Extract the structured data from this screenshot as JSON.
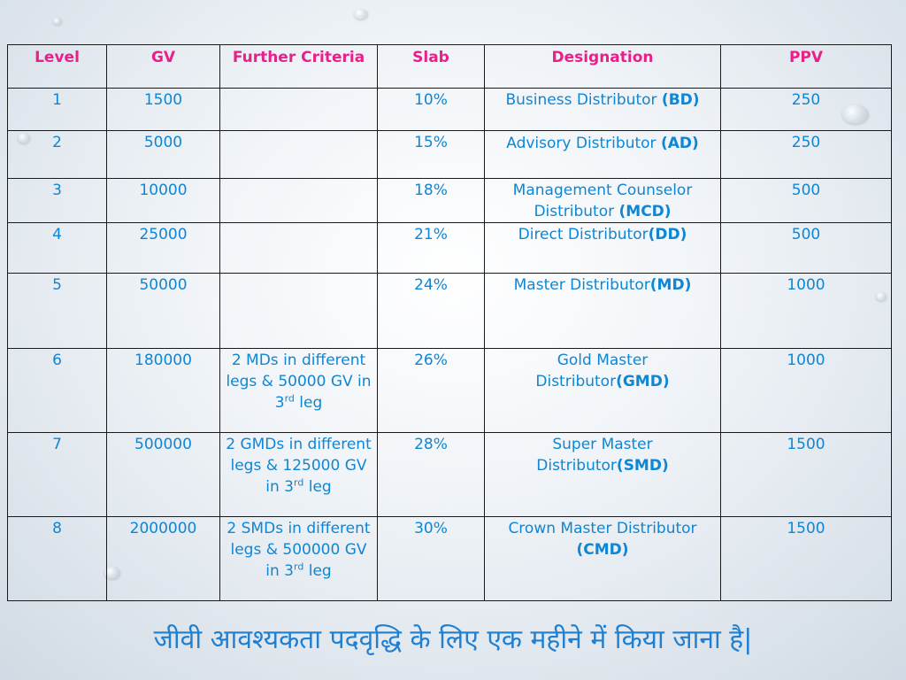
{
  "table": {
    "headers": [
      "Level",
      "GV",
      "Further Criteria",
      "Slab",
      "Designation",
      "PPV"
    ],
    "rows": [
      {
        "level": "1",
        "gv": "1500",
        "criteria": {
          "before": "",
          "sup": "",
          "after": ""
        },
        "slab": "10%",
        "designation": {
          "name": "Business Distributor ",
          "abbr": "(BD)"
        },
        "ppv": "250"
      },
      {
        "level": "2",
        "gv": "5000",
        "criteria": {
          "before": "",
          "sup": "",
          "after": ""
        },
        "slab": "15%",
        "designation": {
          "name": "Advisory Distributor ",
          "abbr": "(AD)"
        },
        "ppv": "250"
      },
      {
        "level": "3",
        "gv": "10000",
        "criteria": {
          "before": "",
          "sup": "",
          "after": ""
        },
        "slab": "18%",
        "designation": {
          "name": "Management Counselor Distributor ",
          "abbr": "(MCD)"
        },
        "ppv": "500"
      },
      {
        "level": "4",
        "gv": "25000",
        "criteria": {
          "before": "",
          "sup": "",
          "after": ""
        },
        "slab": "21%",
        "designation": {
          "name": "Direct Distributor",
          "abbr": "(DD)"
        },
        "ppv": "500"
      },
      {
        "level": "5",
        "gv": "50000",
        "criteria": {
          "before": "",
          "sup": "",
          "after": ""
        },
        "slab": "24%",
        "designation": {
          "name": "Master Distributor",
          "abbr": "(MD)"
        },
        "ppv": "1000"
      },
      {
        "level": "6",
        "gv": "180000",
        "criteria": {
          "before": "2 MDs in different legs & 50000 GV in 3",
          "sup": "rd",
          "after": " leg"
        },
        "slab": "26%",
        "designation": {
          "name": "Gold Master Distributor",
          "abbr": "(GMD)"
        },
        "ppv": "1000"
      },
      {
        "level": "7",
        "gv": "500000",
        "criteria": {
          "before": "2 GMDs in different legs & 125000 GV in 3",
          "sup": "rd",
          "after": " leg"
        },
        "slab": "28%",
        "designation": {
          "name": "Super Master Distributor",
          "abbr": "(SMD)"
        },
        "ppv": "1500"
      },
      {
        "level": "8",
        "gv": "2000000",
        "criteria": {
          "before": "2 SMDs in different legs & 500000 GV in 3",
          "sup": "rd",
          "after": " leg"
        },
        "slab": "30%",
        "designation": {
          "name": "Crown Master Distributor ",
          "abbr": "(CMD)"
        },
        "ppv": "1500"
      }
    ]
  },
  "footer_text": "जीवी आवश्यकता पदवृद्धि के लिए एक महीने में किया जाना है|",
  "colors": {
    "header_text": "#ea1f8a",
    "body_text": "#0e86d4",
    "footer_text": "#1f7fd0",
    "border": "#1a1a1a"
  }
}
